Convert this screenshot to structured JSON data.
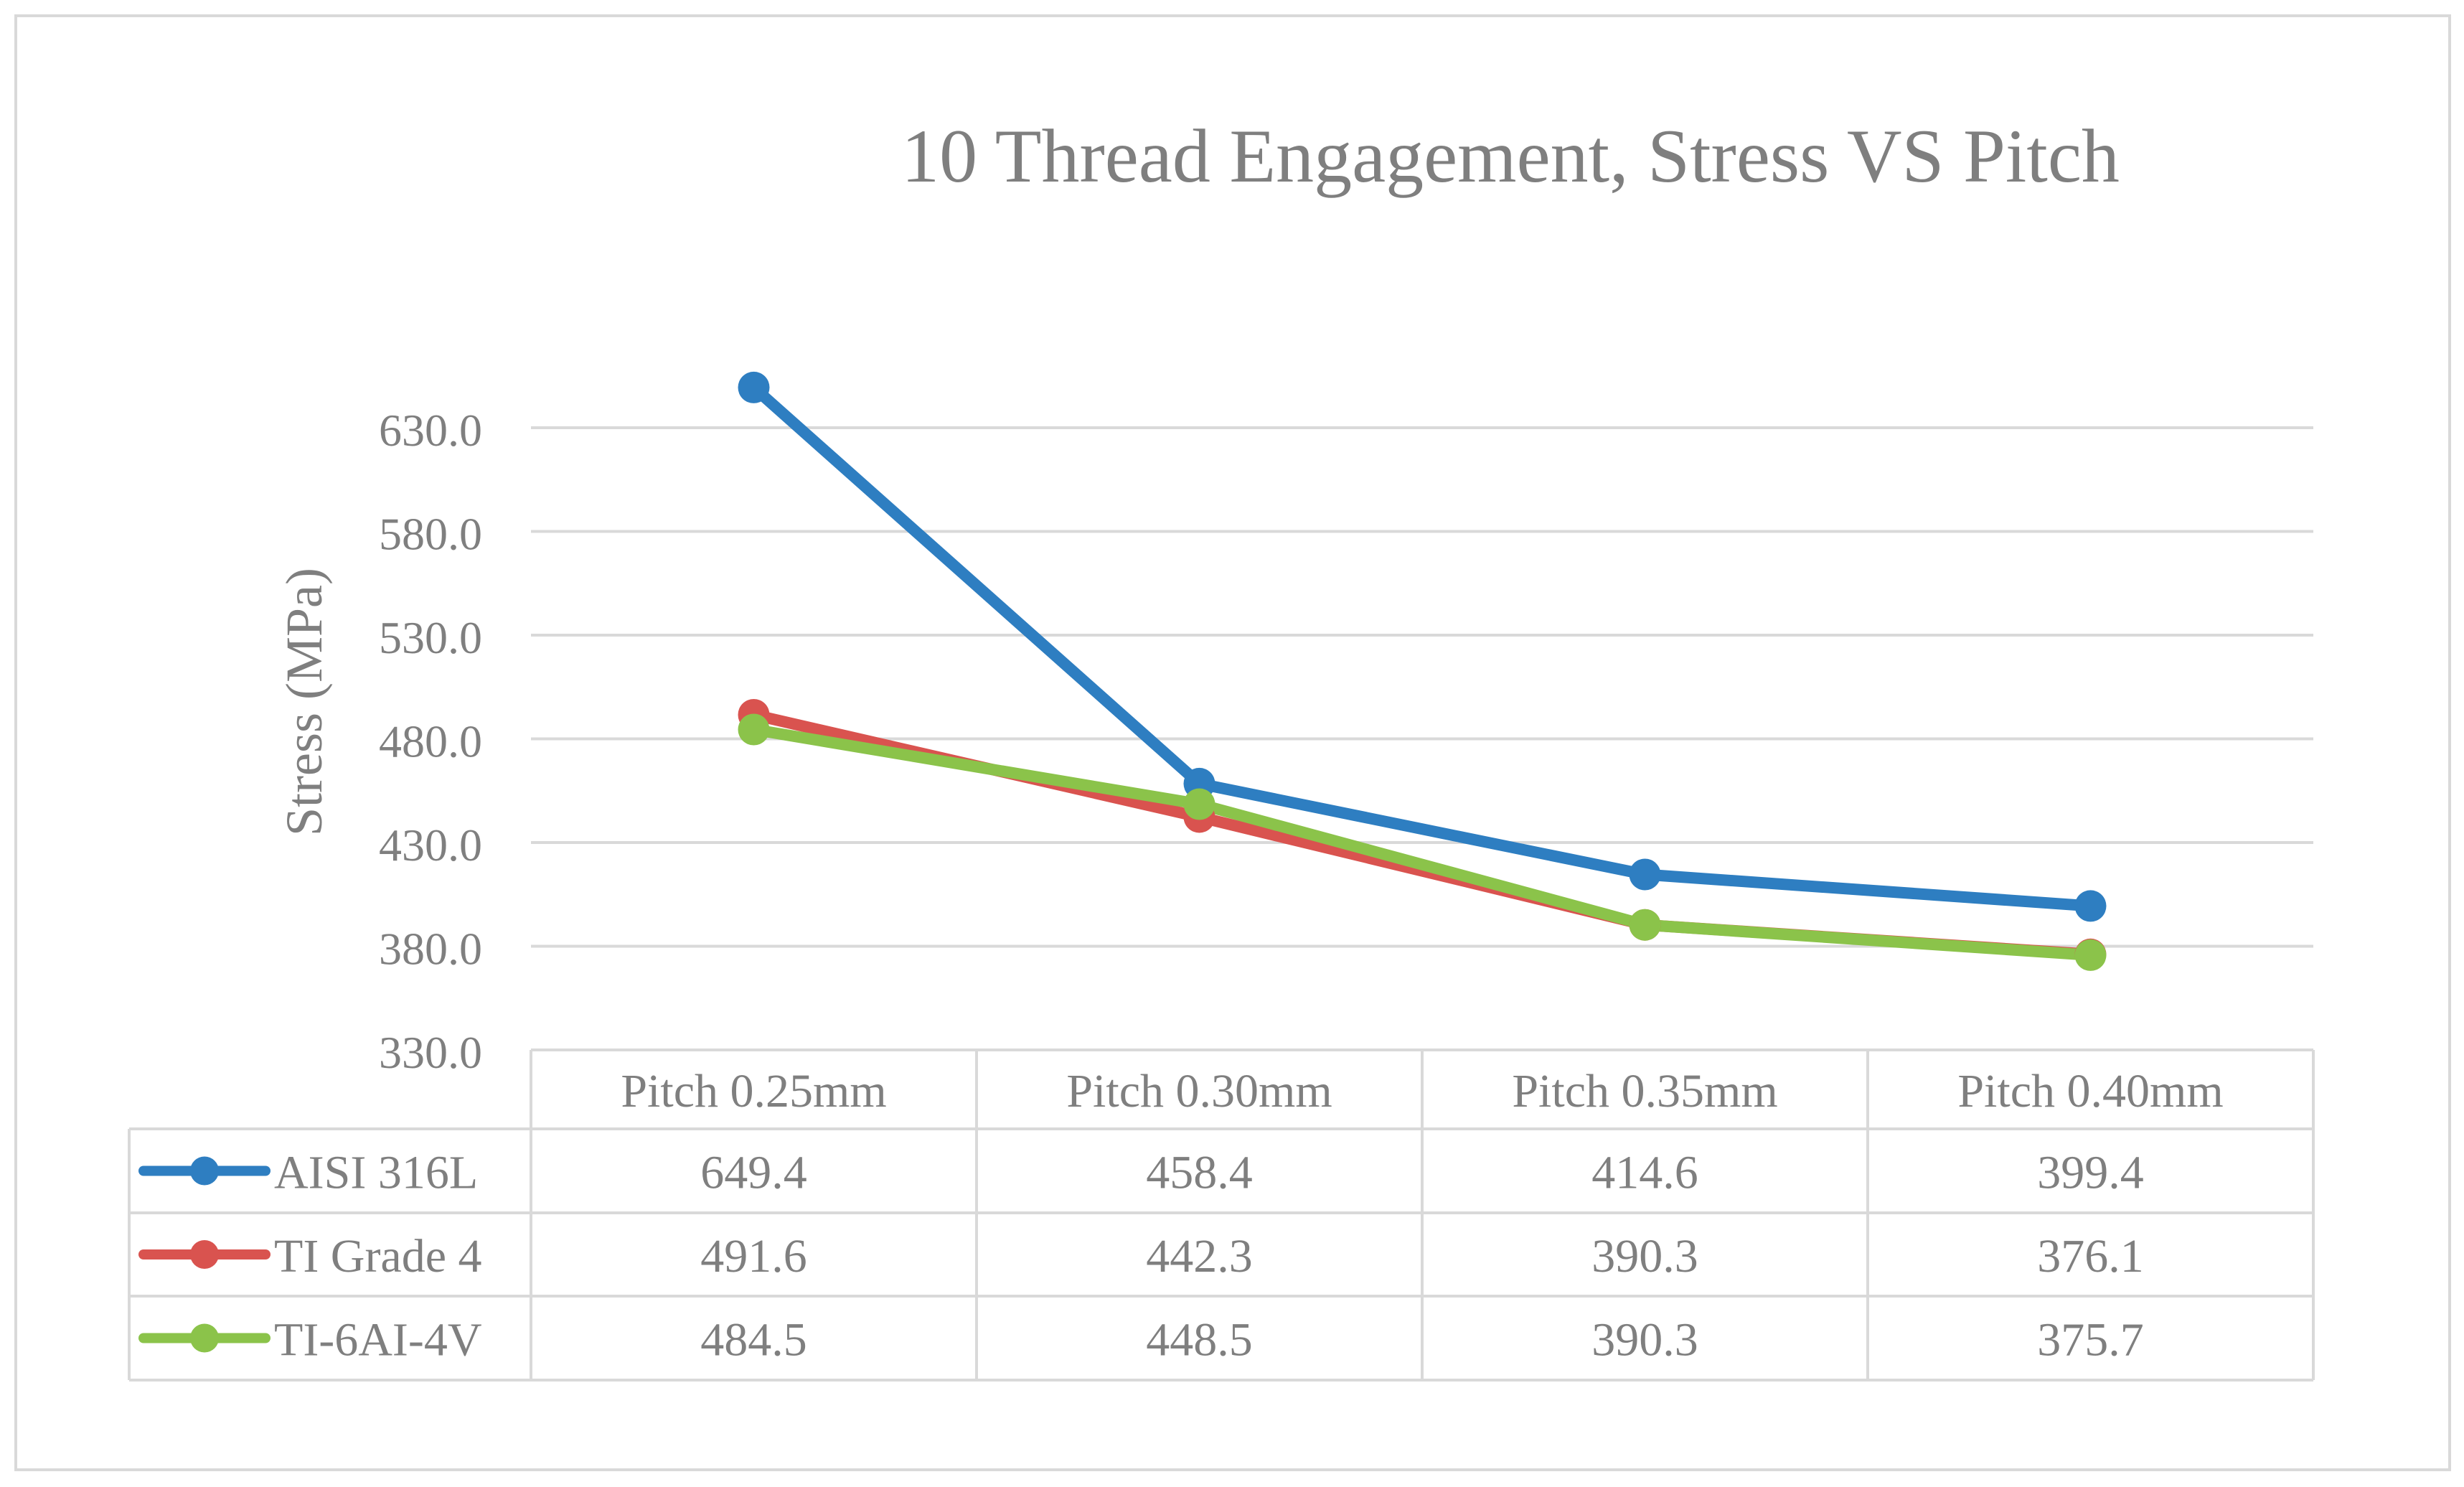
{
  "chart_data": {
    "type": "line",
    "title": "10 Thread Engagement, Stress VS Pitch",
    "xlabel": "",
    "ylabel": "Stress (MPa)",
    "categories": [
      "Pitch 0.25mm",
      "Pitch 0.30mm",
      "Pitch 0.35mm",
      "Pitch 0.40mm"
    ],
    "ylim": [
      330,
      680
    ],
    "yticks": [
      330.0,
      380.0,
      430.0,
      480.0,
      530.0,
      580.0,
      630.0
    ],
    "ytick_labels": [
      "330.0",
      "380.0",
      "430.0",
      "480.0",
      "530.0",
      "580.0",
      "630.0"
    ],
    "grid": true,
    "legend": "data-table-below",
    "series": [
      {
        "name": "AISI 316L",
        "color": "#2E7EC1",
        "values": [
          649.4,
          458.4,
          414.6,
          399.4
        ],
        "labels": [
          "649.4",
          "458.4",
          "414.6",
          "399.4"
        ]
      },
      {
        "name": "TI Grade 4",
        "color": "#D9534F",
        "values": [
          491.6,
          442.3,
          390.3,
          376.1
        ],
        "labels": [
          "491.6",
          "442.3",
          "390.3",
          "376.1"
        ]
      },
      {
        "name": "TI-6AI-4V",
        "color": "#8BC34A",
        "values": [
          484.5,
          448.5,
          390.3,
          375.7
        ],
        "labels": [
          "484.5",
          "448.5",
          "390.3",
          "375.7"
        ]
      }
    ]
  },
  "style": {
    "text_color": "#7F7F7F",
    "grid_color": "#D9D9D9",
    "border_color": "#D9D9D9"
  }
}
